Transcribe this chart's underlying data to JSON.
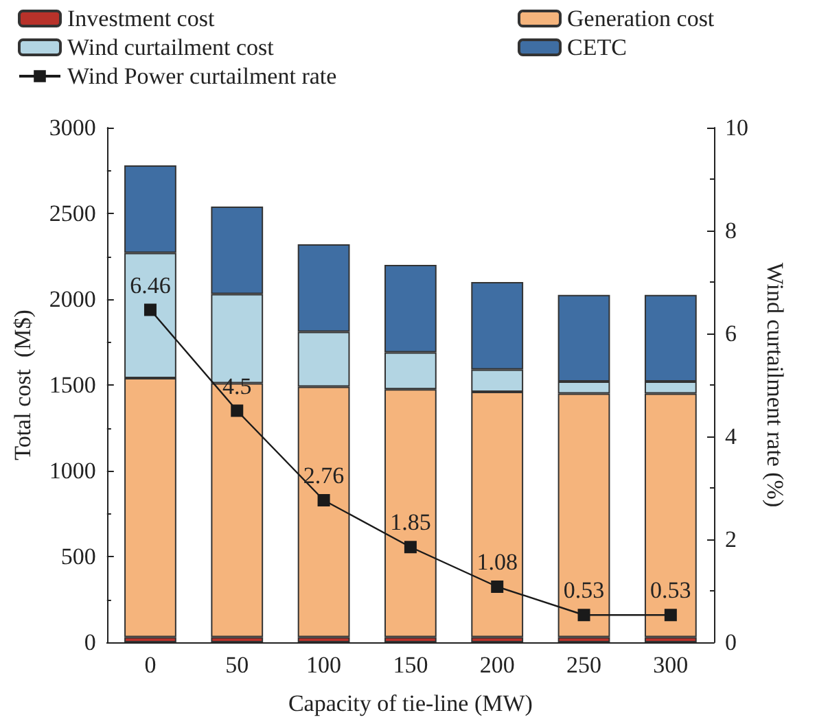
{
  "chart_data": {
    "type": "bar",
    "stacked": true,
    "xlabel": "Capacity of tie-line (MW)",
    "ylabel": "Total cost  (M$)",
    "y2label": "Wind curtailment rate (%)",
    "categories": [
      "0",
      "50",
      "100",
      "150",
      "200",
      "250",
      "300"
    ],
    "series": [
      {
        "name": "Investment cost",
        "color": "#b8322a",
        "values": [
          30,
          30,
          30,
          30,
          30,
          30,
          30
        ]
      },
      {
        "name": "Generation cost",
        "color": "#f5b47c",
        "values": [
          1510,
          1480,
          1460,
          1445,
          1430,
          1420,
          1420
        ]
      },
      {
        "name": "Wind curtailment cost",
        "color": "#b3d5e3",
        "values": [
          730,
          520,
          320,
          215,
          130,
          70,
          70
        ]
      },
      {
        "name": "CETC",
        "color": "#3f6ea3",
        "values": [
          510,
          510,
          510,
          510,
          510,
          505,
          505
        ]
      },
      {
        "name": "Wind Power curtailment rate",
        "type": "line",
        "axis": "y2",
        "color": "#1a1a1a",
        "marker": "square",
        "line_style": "solid",
        "data_labels": true,
        "values": [
          6.46,
          4.5,
          2.76,
          1.85,
          1.08,
          0.53,
          0.53
        ]
      }
    ],
    "ylim": [
      0,
      3000
    ],
    "yticks": [
      0,
      500,
      1000,
      1500,
      2000,
      2500,
      3000
    ],
    "y2lim": [
      0,
      10
    ],
    "y2ticks": [
      0,
      2,
      4,
      6,
      8,
      10
    ],
    "grid": false,
    "legend": "top"
  }
}
